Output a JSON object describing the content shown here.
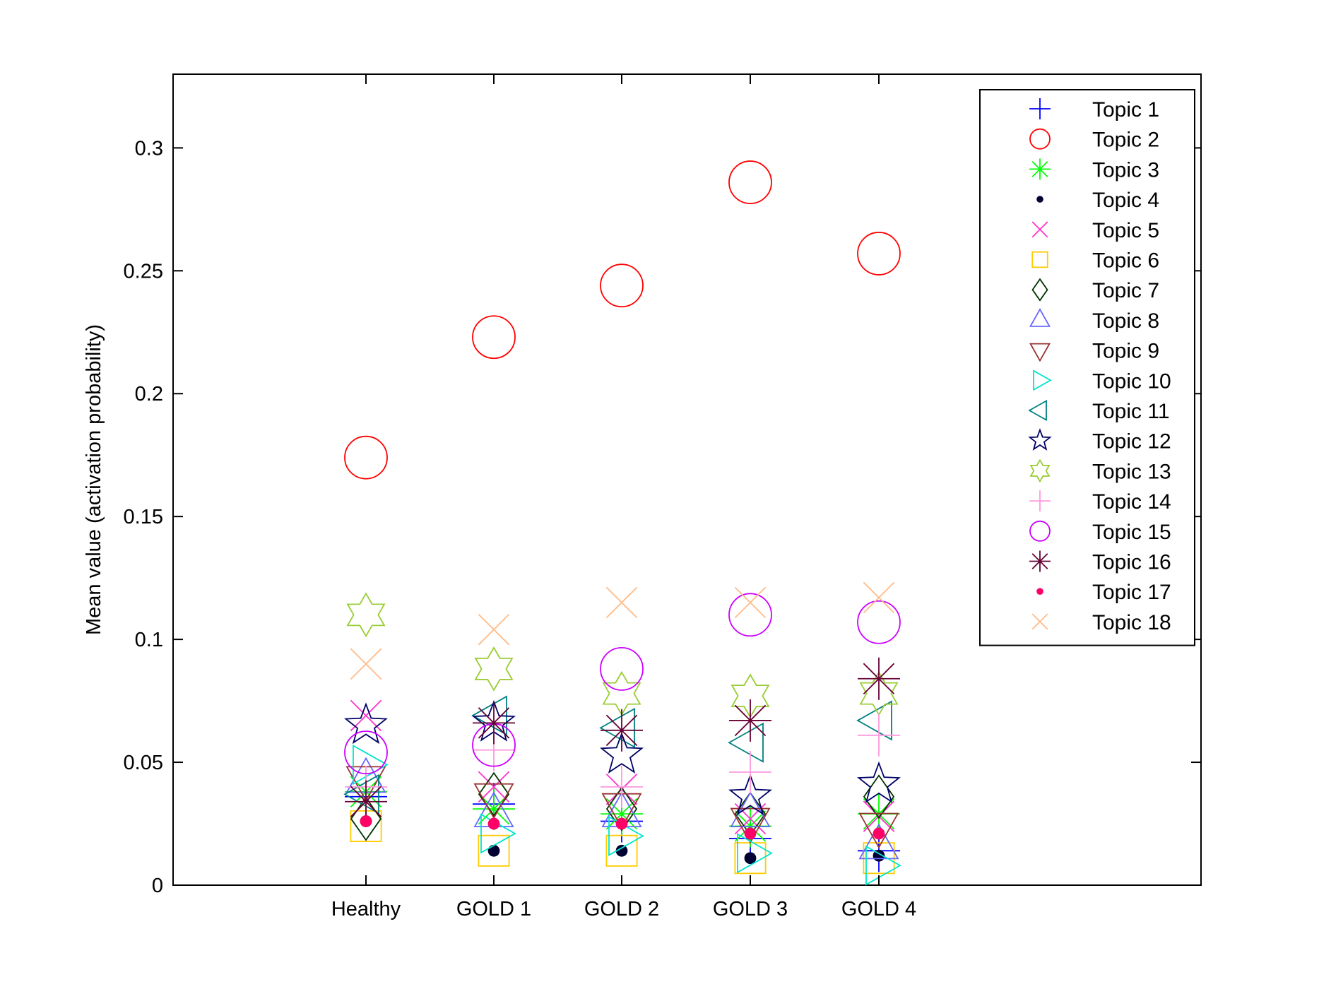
{
  "chart_data": {
    "type": "scatter",
    "title": "",
    "xlabel": "",
    "ylabel": "Mean value (activation probability)",
    "categories": [
      "Healthy",
      "GOLD 1",
      "GOLD 2",
      "GOLD 3",
      "GOLD 4"
    ],
    "ylim": [
      0,
      0.33
    ],
    "yticks": [
      0,
      0.05,
      0.1,
      0.15,
      0.2,
      0.25,
      0.3
    ],
    "ytick_labels": [
      "0",
      "0.05",
      "0.1",
      "0.15",
      "0.2",
      "0.25",
      "0.3"
    ],
    "grid": false,
    "legend_position": "top-right",
    "series": [
      {
        "name": "Topic 1",
        "marker": "plus",
        "color": "#0000ff",
        "values": [
          0.036,
          0.033,
          0.026,
          0.019,
          0.014
        ]
      },
      {
        "name": "Topic 2",
        "marker": "circle",
        "color": "#ff0000",
        "values": [
          0.174,
          0.223,
          0.244,
          0.286,
          0.257
        ]
      },
      {
        "name": "Topic 3",
        "marker": "asterisk",
        "color": "#00ff00",
        "values": [
          0.038,
          0.031,
          0.029,
          0.024,
          0.029
        ]
      },
      {
        "name": "Topic 4",
        "marker": "dot",
        "color": "#000033",
        "values": [
          0.026,
          0.014,
          0.014,
          0.011,
          0.012
        ]
      },
      {
        "name": "Topic 5",
        "marker": "x",
        "color": "#ff33cc",
        "values": [
          0.069,
          0.04,
          0.039,
          0.027,
          0.028
        ]
      },
      {
        "name": "Topic 6",
        "marker": "square",
        "color": "#ffcc00",
        "values": [
          0.024,
          0.014,
          0.014,
          0.011,
          0.011
        ]
      },
      {
        "name": "Topic 7",
        "marker": "diamond",
        "color": "#003300",
        "values": [
          0.027,
          0.037,
          0.031,
          0.029,
          0.036
        ]
      },
      {
        "name": "Topic 8",
        "marker": "triangle-up",
        "color": "#6666ff",
        "values": [
          0.043,
          0.029,
          0.029,
          0.029,
          0.016
        ]
      },
      {
        "name": "Topic 9",
        "marker": "triangle-down",
        "color": "#993333",
        "values": [
          0.043,
          0.036,
          0.032,
          0.026,
          0.024
        ]
      },
      {
        "name": "Topic 10",
        "marker": "triangle-right",
        "color": "#00e6cc",
        "values": [
          0.049,
          0.021,
          0.02,
          0.013,
          0.008
        ]
      },
      {
        "name": "Topic 11",
        "marker": "triangle-left",
        "color": "#008080",
        "values": [
          0.037,
          0.069,
          0.064,
          0.058,
          0.067
        ]
      },
      {
        "name": "Topic 12",
        "marker": "star",
        "color": "#000066",
        "values": [
          0.065,
          0.066,
          0.053,
          0.036,
          0.041
        ]
      },
      {
        "name": "Topic 13",
        "marker": "hexagram",
        "color": "#99cc33",
        "values": [
          0.11,
          0.088,
          0.078,
          0.077,
          0.078
        ]
      },
      {
        "name": "Topic 14",
        "marker": "plus",
        "color": "#ff99dd",
        "values": [
          0.04,
          0.055,
          0.04,
          0.046,
          0.061
        ]
      },
      {
        "name": "Topic 15",
        "marker": "circle",
        "color": "#cc00ff",
        "values": [
          0.054,
          0.057,
          0.088,
          0.11,
          0.107
        ]
      },
      {
        "name": "Topic 16",
        "marker": "asterisk",
        "color": "#660033",
        "values": [
          0.034,
          0.066,
          0.063,
          0.067,
          0.084
        ]
      },
      {
        "name": "Topic 17",
        "marker": "dot",
        "color": "#ff0066",
        "values": [
          0.026,
          0.025,
          0.025,
          0.021,
          0.021
        ]
      },
      {
        "name": "Topic 18",
        "marker": "x",
        "color": "#ffbb88",
        "values": [
          0.09,
          0.104,
          0.115,
          0.115,
          0.117
        ]
      }
    ]
  }
}
